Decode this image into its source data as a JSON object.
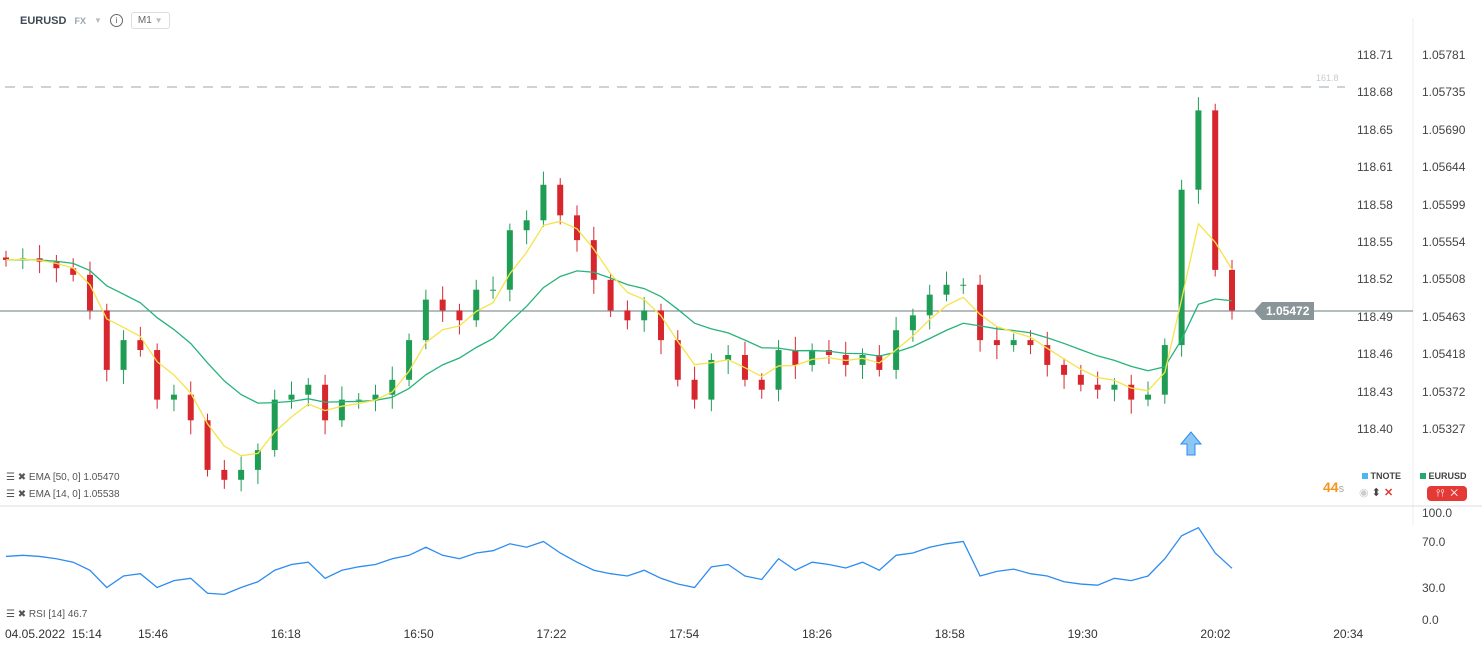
{
  "header": {
    "symbol": "EURUSD",
    "market": "FX",
    "timeframe": "M1"
  },
  "colors": {
    "up": "#1f9d55",
    "down": "#d8262f",
    "ema50": "#26b37a",
    "ema14": "#f5e34a",
    "rsi": "#2d8cf0",
    "price_tag": "#8a9599",
    "countdown": "#f7941d"
  },
  "price_axis_secondary": [
    "118.71",
    "118.68",
    "118.65",
    "118.61",
    "118.58",
    "118.55",
    "118.52",
    "118.49",
    "118.46",
    "118.43",
    "118.40"
  ],
  "price_axis": [
    "1.05781",
    "1.05735",
    "1.05690",
    "1.05644",
    "1.05599",
    "1.05554",
    "1.05508",
    "1.05463",
    "1.05418",
    "1.05372",
    "1.05327"
  ],
  "current_price": "1.05472",
  "fib_label": "161.8",
  "rsi_axis": [
    "100.0",
    "70.0",
    "30.0",
    "0.0"
  ],
  "time_axis": [
    "04.05.2022  15:14",
    "15:46",
    "16:18",
    "16:50",
    "17:22",
    "17:54",
    "18:26",
    "18:58",
    "19:30",
    "20:02",
    "20:34"
  ],
  "indicators": {
    "ema50": "EMA  [50,  0]  1.05470",
    "ema14": "EMA  [14,  0]  1.05538",
    "rsi": "RSI  [14]  46.7"
  },
  "countdown": {
    "value": "44",
    "unit": "s"
  },
  "legend": {
    "tnote": "TNOTE",
    "eurusd": "EURUSD"
  },
  "chart_data": {
    "type": "candlestick",
    "price_range": [
      1.0528,
      1.058
    ],
    "closes": [
      1.05533,
      1.05535,
      1.05531,
      1.05523,
      1.05515,
      1.05472,
      1.054,
      1.05436,
      1.05424,
      1.05364,
      1.0537,
      1.05339,
      1.05279,
      1.05267,
      1.05279,
      1.05303,
      1.05364,
      1.0537,
      1.05382,
      1.05339,
      1.05364,
      1.05364,
      1.0537,
      1.05388,
      1.05436,
      1.05485,
      1.05472,
      1.0546,
      1.05497,
      1.05497,
      1.05569,
      1.05581,
      1.05624,
      1.05587,
      1.05557,
      1.05509,
      1.05472,
      1.0546,
      1.05472,
      1.05436,
      1.05388,
      1.05364,
      1.05412,
      1.05418,
      1.05388,
      1.05376,
      1.05424,
      1.05406,
      1.05424,
      1.05418,
      1.05406,
      1.05418,
      1.054,
      1.05448,
      1.05466,
      1.05491,
      1.05503,
      1.05503,
      1.05436,
      1.0543,
      1.05436,
      1.0543,
      1.05406,
      1.05394,
      1.05382,
      1.05376,
      1.05382,
      1.05364,
      1.0537,
      1.0543,
      1.05618,
      1.05714,
      1.05521,
      1.05472
    ],
    "rsi": [
      57,
      58,
      57,
      55,
      52,
      45,
      30,
      40,
      42,
      30,
      36,
      38,
      25,
      24,
      30,
      35,
      45,
      50,
      52,
      38,
      45,
      48,
      50,
      55,
      58,
      65,
      58,
      55,
      60,
      62,
      68,
      65,
      70,
      60,
      52,
      45,
      42,
      40,
      45,
      38,
      33,
      30,
      48,
      50,
      40,
      37,
      55,
      45,
      52,
      50,
      47,
      52,
      45,
      58,
      60,
      65,
      68,
      70,
      40,
      44,
      46,
      42,
      40,
      35,
      33,
      32,
      38,
      36,
      40,
      55,
      75,
      82,
      60,
      46.7
    ],
    "rsi_range": [
      0,
      100
    ]
  }
}
